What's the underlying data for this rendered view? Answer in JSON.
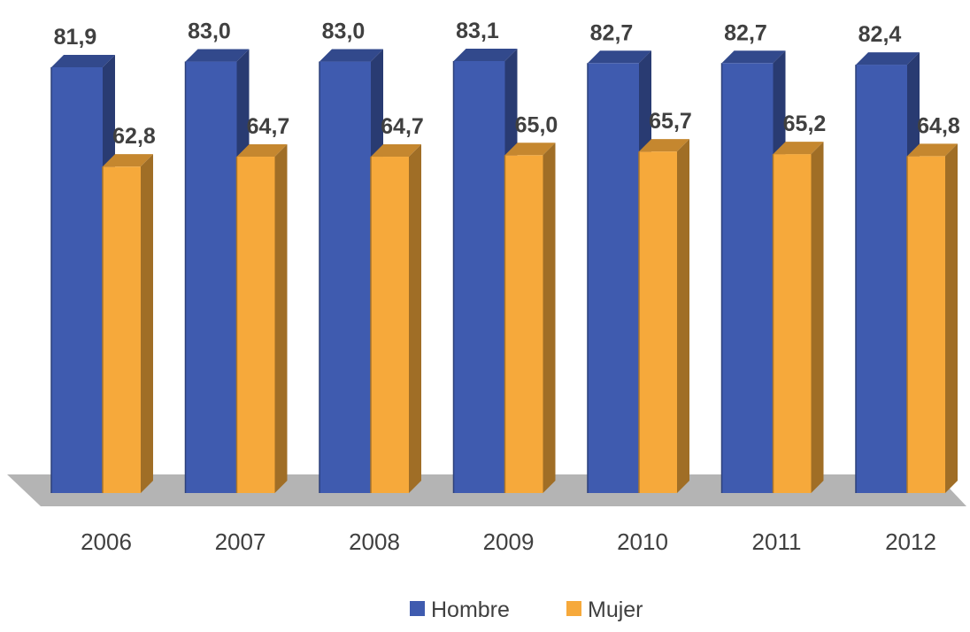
{
  "chart_data": {
    "type": "bar",
    "categories": [
      "2006",
      "2007",
      "2008",
      "2009",
      "2010",
      "2011",
      "2012"
    ],
    "series": [
      {
        "name": "Hombre",
        "values": [
          81.9,
          83.0,
          83.0,
          83.1,
          82.7,
          82.7,
          82.4
        ],
        "labels": [
          "81,9",
          "83,0",
          "83,0",
          "83,1",
          "82,7",
          "82,7",
          "82,4"
        ],
        "color": "#3F5BAF"
      },
      {
        "name": "Mujer",
        "values": [
          62.8,
          64.7,
          64.7,
          65.0,
          65.7,
          65.2,
          64.8
        ],
        "labels": [
          "62,8",
          "64,7",
          "64,7",
          "65,0",
          "65,7",
          "65,2",
          "64,8"
        ],
        "color": "#F6A93B"
      }
    ],
    "title": "",
    "xlabel": "",
    "ylabel": "",
    "ylim": [
      0,
      85
    ],
    "grid": false,
    "legend": "bottom",
    "style": "3d-column",
    "floor_color": "#B4B4B4"
  }
}
